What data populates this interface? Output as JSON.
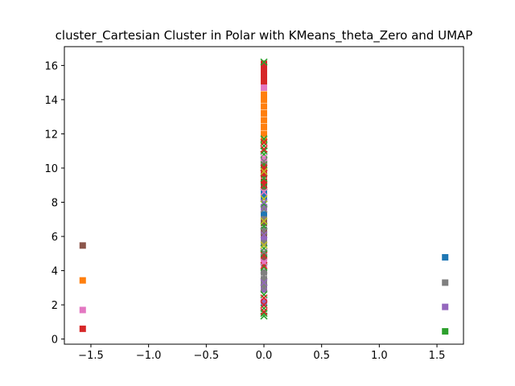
{
  "chart_data": {
    "type": "scatter",
    "title": "cluster_Cartesian Cluster in Polar with KMeans_theta_Zero and UMAP",
    "xlabel": "",
    "ylabel": "",
    "xlim": [
      -1.73,
      1.73
    ],
    "ylim": [
      -0.3,
      17.1
    ],
    "xticks": [
      -1.5,
      -1.0,
      -0.5,
      0.0,
      0.5,
      1.0,
      1.5
    ],
    "xtick_labels": [
      "−1.5",
      "−1.0",
      "−0.5",
      "0.0",
      "0.5",
      "1.0",
      "1.5"
    ],
    "yticks": [
      0,
      2,
      4,
      6,
      8,
      10,
      12,
      14,
      16
    ],
    "ytick_labels": [
      "0",
      "2",
      "4",
      "6",
      "8",
      "10",
      "12",
      "14",
      "16"
    ],
    "grid": false,
    "series": [
      {
        "color": "#1f77b4",
        "marker": "square",
        "points": [
          [
            1.571,
            4.78
          ]
        ]
      },
      {
        "color": "#7f7f7f",
        "marker": "square",
        "points": [
          [
            1.571,
            3.3
          ]
        ]
      },
      {
        "color": "#9467bd",
        "marker": "square",
        "points": [
          [
            1.571,
            1.88
          ]
        ]
      },
      {
        "color": "#2ca02c",
        "marker": "square",
        "points": [
          [
            1.571,
            0.45
          ]
        ]
      },
      {
        "color": "#8c564b",
        "marker": "square",
        "points": [
          [
            -1.571,
            5.47
          ]
        ]
      },
      {
        "color": "#ff7f0e",
        "marker": "square",
        "points": [
          [
            -1.571,
            3.43
          ]
        ]
      },
      {
        "color": "#e377c2",
        "marker": "square",
        "points": [
          [
            -1.571,
            1.7
          ]
        ]
      },
      {
        "color": "#d62728",
        "marker": "square",
        "points": [
          [
            -1.571,
            0.6
          ]
        ]
      },
      {
        "color": "#ff7f0e",
        "marker": "square",
        "points": [
          [
            0,
            11.6
          ],
          [
            0,
            12.0
          ],
          [
            0,
            12.4
          ],
          [
            0,
            12.8
          ],
          [
            0,
            13.2
          ],
          [
            0,
            13.6
          ],
          [
            0,
            14.0
          ],
          [
            0,
            14.3
          ]
        ]
      },
      {
        "color": "#d62728",
        "marker": "square",
        "points": [
          [
            0,
            14.9
          ],
          [
            0,
            15.2
          ],
          [
            0,
            15.5
          ],
          [
            0,
            15.8
          ],
          [
            0,
            16.1
          ],
          [
            0,
            9.2
          ],
          [
            0,
            9.6
          ],
          [
            0,
            10.0
          ],
          [
            0,
            10.3
          ]
        ]
      },
      {
        "color": "#e377c2",
        "marker": "square",
        "points": [
          [
            0,
            14.7
          ],
          [
            0,
            10.5
          ],
          [
            0,
            4.4
          ],
          [
            0,
            4.6
          ],
          [
            0,
            2.2
          ]
        ]
      },
      {
        "color": "#1f77b4",
        "marker": "square",
        "points": [
          [
            0,
            8.3
          ],
          [
            0,
            8.5
          ],
          [
            0,
            7.3
          ]
        ]
      },
      {
        "color": "#9467bd",
        "marker": "square",
        "points": [
          [
            0,
            7.7
          ],
          [
            0,
            6.0
          ],
          [
            0,
            5.9
          ],
          [
            0,
            2.9
          ],
          [
            0,
            2.1
          ]
        ]
      },
      {
        "color": "#7f7f7f",
        "marker": "square",
        "points": [
          [
            0,
            7.0
          ],
          [
            0,
            6.4
          ],
          [
            0,
            5.6
          ],
          [
            0,
            3.2
          ],
          [
            0,
            3.5
          ],
          [
            0,
            3.9
          ]
        ]
      },
      {
        "color": "#8c564b",
        "marker": "square",
        "points": [
          [
            0,
            6.8
          ],
          [
            0,
            6.2
          ],
          [
            0,
            8.9
          ],
          [
            0,
            4.8
          ]
        ]
      },
      {
        "color": "#2ca02c",
        "marker": "x",
        "points": [
          [
            0,
            16.2
          ],
          [
            0,
            11.7
          ],
          [
            0,
            11.3
          ],
          [
            0,
            11.0
          ],
          [
            0,
            10.8
          ],
          [
            0,
            10.2
          ],
          [
            0,
            9.4
          ],
          [
            0,
            8.9
          ],
          [
            0,
            7.9
          ],
          [
            0,
            6.6
          ],
          [
            0,
            5.3
          ],
          [
            0,
            5.0
          ],
          [
            0,
            4.2
          ],
          [
            0,
            2.6
          ],
          [
            0,
            1.8
          ],
          [
            0,
            1.5
          ],
          [
            0,
            1.35
          ]
        ]
      },
      {
        "color": "#d62728",
        "marker": "x",
        "points": [
          [
            0,
            11.5
          ],
          [
            0,
            11.1
          ],
          [
            0,
            10.0
          ],
          [
            0,
            9.7
          ],
          [
            0,
            9.0
          ],
          [
            0,
            4.9
          ],
          [
            0,
            4.3
          ],
          [
            0,
            2.4
          ],
          [
            0,
            2.0
          ],
          [
            0,
            1.6
          ]
        ]
      },
      {
        "color": "#e377c2",
        "marker": "x",
        "points": [
          [
            0,
            10.6
          ],
          [
            0,
            8.6
          ],
          [
            0,
            4.5
          ]
        ]
      },
      {
        "color": "#7f7f7f",
        "marker": "x",
        "points": [
          [
            0,
            10.4
          ],
          [
            0,
            7.6
          ],
          [
            0,
            6.3
          ],
          [
            0,
            5.1
          ],
          [
            0,
            3.7
          ],
          [
            0,
            3.0
          ]
        ]
      },
      {
        "color": "#bcbd22",
        "marker": "x",
        "points": [
          [
            0,
            9.8
          ],
          [
            0,
            8.2
          ],
          [
            0,
            6.9
          ],
          [
            0,
            5.5
          ]
        ]
      },
      {
        "color": "#9467bd",
        "marker": "x",
        "points": [
          [
            0,
            8.0
          ],
          [
            0,
            6.1
          ],
          [
            0,
            3.3
          ]
        ]
      }
    ]
  }
}
